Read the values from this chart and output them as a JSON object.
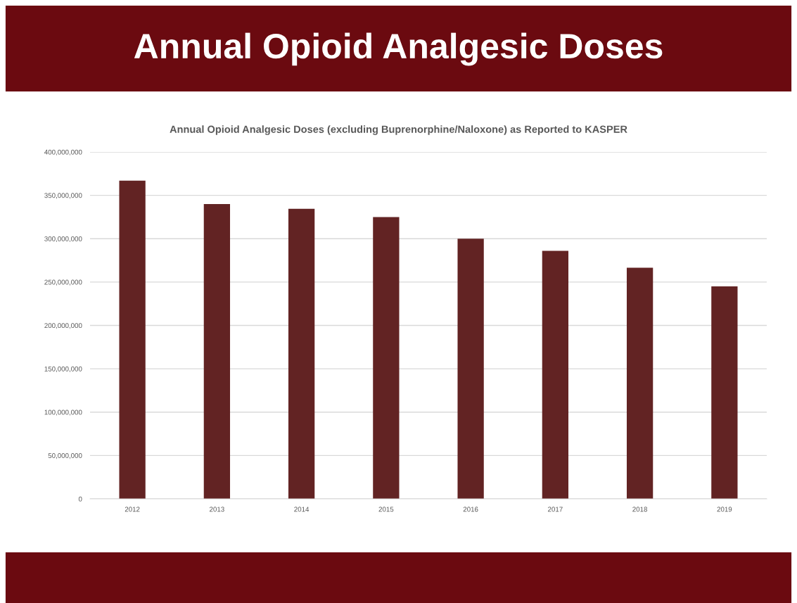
{
  "chart_data": {
    "type": "bar",
    "title": "Annual Opioid Analgesic Doses",
    "subtitle": "Annual Opioid Analgesic Doses (excluding Buprenorphine/Naloxone) as Reported to KASPER",
    "categories": [
      "2012",
      "2013",
      "2014",
      "2015",
      "2016",
      "2017",
      "2018",
      "2019"
    ],
    "values": [
      367000000,
      340000000,
      334500000,
      325000000,
      300000000,
      286000000,
      266500000,
      245000000
    ],
    "color": "#622323",
    "ylim": [
      0,
      400000000
    ],
    "yticks": [
      {
        "value": 0,
        "label": "0"
      },
      {
        "value": 50000000,
        "label": "50,000,000"
      },
      {
        "value": 100000000,
        "label": "100,000,000"
      },
      {
        "value": 150000000,
        "label": "150,000,000"
      },
      {
        "value": 200000000,
        "label": "200,000,000"
      },
      {
        "value": 250000000,
        "label": "250,000,000"
      },
      {
        "value": 300000000,
        "label": "300,000,000"
      },
      {
        "value": 350000000,
        "label": "350,000,000"
      },
      {
        "value": 400000000,
        "label": "400,000,000"
      }
    ],
    "grid": "y"
  }
}
